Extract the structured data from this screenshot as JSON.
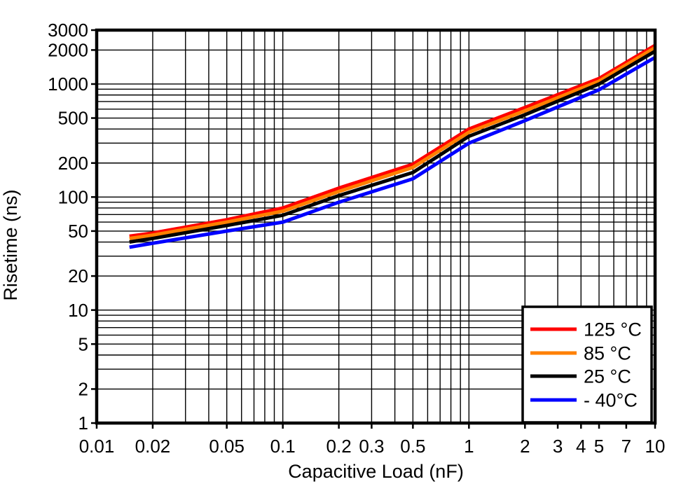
{
  "chart_data": {
    "type": "line",
    "title": "",
    "xlabel": "Capacitive Load (nF)",
    "ylabel": "Risetime (ns)",
    "x_scale": "log",
    "y_scale": "log",
    "xlim": [
      0.01,
      10
    ],
    "ylim": [
      1,
      3000
    ],
    "grid": "log minor gridlines on, both axes, black",
    "legend_position": "bottom-right",
    "x_ticks": [
      0.01,
      0.02,
      0.05,
      0.1,
      0.2,
      0.3,
      0.5,
      1,
      2,
      3,
      4,
      5,
      7,
      10
    ],
    "x_tick_labels": [
      "0.01",
      "0.02",
      "0.05",
      "0.1",
      "0.2",
      "0.3",
      "0.5",
      "1",
      "2",
      "3",
      "4",
      "5",
      "7",
      "10"
    ],
    "y_ticks": [
      1,
      2,
      5,
      10,
      20,
      50,
      100,
      200,
      500,
      1000,
      2000,
      3000
    ],
    "y_tick_labels": [
      "1",
      "2",
      "5",
      "10",
      "20",
      "50",
      "100",
      "200",
      "500",
      "1000",
      "2000",
      "3000"
    ],
    "x": [
      0.015,
      0.02,
      0.05,
      0.1,
      0.2,
      0.5,
      1,
      2,
      5,
      10
    ],
    "series": [
      {
        "name": "125 °C",
        "color": "#ff0000",
        "values": [
          45,
          48,
          63,
          80,
          120,
          195,
          400,
          620,
          1120,
          2200
        ]
      },
      {
        "name": "85 °C",
        "color": "#ff8000",
        "values": [
          43,
          46,
          60,
          75,
          112,
          183,
          375,
          580,
          1060,
          2100
        ]
      },
      {
        "name": "25 °C",
        "color": "#000000",
        "values": [
          40,
          43,
          56,
          69,
          103,
          165,
          345,
          535,
          1000,
          1950
        ]
      },
      {
        "name": "- 40°C",
        "color": "#0000ff",
        "values": [
          36,
          39,
          50,
          60,
          90,
          145,
          300,
          475,
          890,
          1720
        ]
      }
    ],
    "axis_color": "#000000",
    "grid_color": "#000000",
    "background_color": "#ffffff"
  }
}
